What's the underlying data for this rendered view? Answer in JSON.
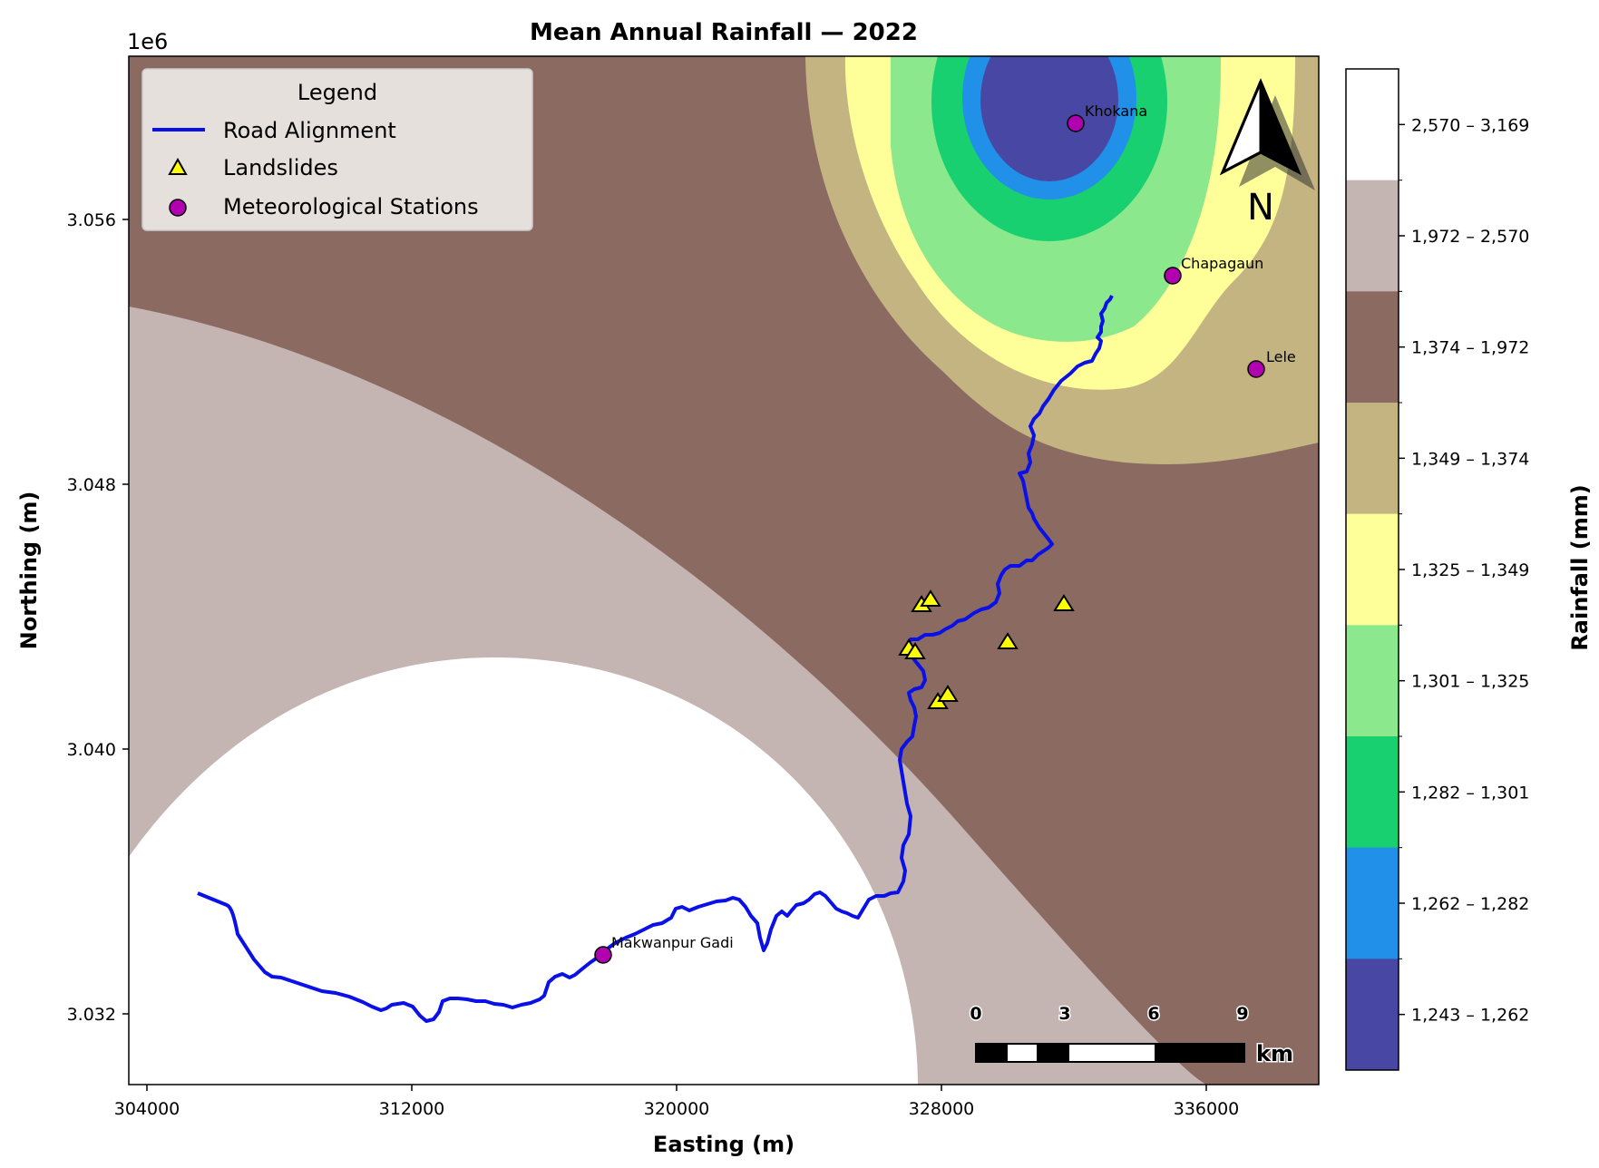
{
  "map": {
    "title": "Mean Annual Rainfall — 2022",
    "xlabel": "Easting (m)",
    "ylabel": "Northing (m)",
    "y_offset_label": "1e6",
    "x_ticks": [
      "304000",
      "312000",
      "320000",
      "328000",
      "336000"
    ],
    "y_ticks": [
      "3.056",
      "3.048",
      "3.040",
      "3.032"
    ],
    "colorbar_title": "Rainfall (mm)",
    "rainfall_classes": [
      {
        "label": "2,570 – 3,169",
        "color": "#ffffff"
      },
      {
        "label": "1,972 – 2,570",
        "color": "#c4b4b2"
      },
      {
        "label": "1,374 – 1,972",
        "color": "#8b6a62"
      },
      {
        "label": "1,349 – 1,374",
        "color": "#c4b482"
      },
      {
        "label": "1,325 – 1,349",
        "color": "#ffff99"
      },
      {
        "label": "1,301 – 1,325",
        "color": "#8ce88c"
      },
      {
        "label": "1,282 – 1,301",
        "color": "#18d070"
      },
      {
        "label": "1,262 – 1,282",
        "color": "#2090e8"
      },
      {
        "label": "1,243 – 1,262",
        "color": "#4848a4"
      }
    ],
    "stations": [
      {
        "name": "Khokana"
      },
      {
        "name": "Chapagaun"
      },
      {
        "name": "Lele"
      },
      {
        "name": "Makwanpur Gadi"
      }
    ],
    "legend": {
      "title": "Legend",
      "road": "Road Alignment",
      "landslides": "Landslides",
      "stations": "Meteorological Stations"
    },
    "scale_bar": {
      "ticks": [
        "0",
        "3",
        "6",
        "9"
      ],
      "unit": "km"
    },
    "north_label": "N",
    "colors": {
      "road": "#0a10e8",
      "landslide": "#ffff00",
      "station": "#b000b0"
    }
  }
}
